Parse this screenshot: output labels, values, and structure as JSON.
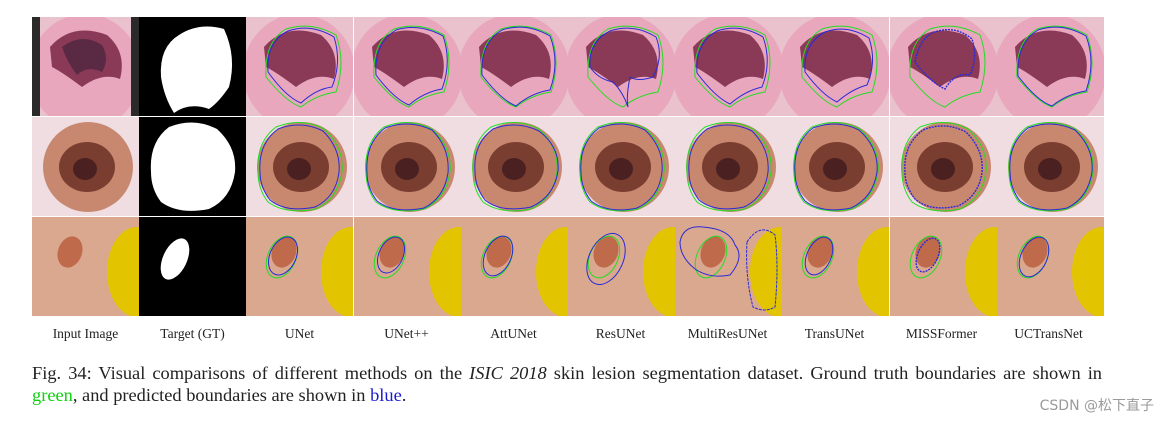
{
  "labels": [
    "Input Image",
    "Target (GT)",
    "UNet",
    "UNet++",
    "AttUNet",
    "ResUNet",
    "MultiResUNet",
    "TransUNet",
    "MISSFormer",
    "UCTransNet"
  ],
  "caption": {
    "prefix": "Fig. 34: Visual comparisons of different methods on the ",
    "dataset": "ISIC 2018",
    "middle": " skin lesion segmentation dataset. Ground truth boundaries are shown in ",
    "green_word": "green",
    "mid2": ", and predicted boundaries are shown in ",
    "blue_word": "blue",
    "end": "."
  },
  "watermark": "CSDN @松下直子",
  "colors": {
    "gt_boundary": "#22dd22",
    "pred_boundary": "#2a2ad8"
  }
}
